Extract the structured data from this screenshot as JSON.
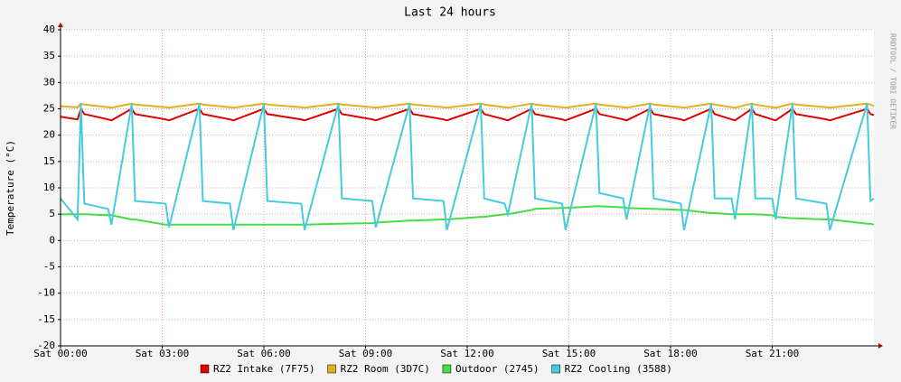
{
  "chart_data": {
    "type": "line",
    "title": "Last 24 hours",
    "y_label": "Temperature (°C)",
    "watermark": "RRDTOOL / TOBI OETIKER",
    "x": [
      0,
      0.5,
      0.6,
      0.7,
      1.4,
      1.5,
      2.1,
      2.2,
      3.1,
      3.2,
      4.1,
      4.2,
      5.0,
      5.1,
      6.0,
      6.1,
      7.1,
      7.2,
      8.2,
      8.3,
      9.2,
      9.3,
      10.3,
      10.4,
      11.3,
      11.4,
      12.4,
      12.5,
      13.1,
      13.2,
      13.9,
      14.0,
      14.8,
      14.9,
      15.8,
      15.9,
      16.6,
      16.7,
      17.4,
      17.5,
      18.3,
      18.4,
      19.2,
      19.3,
      19.8,
      19.9,
      20.4,
      20.5,
      21.0,
      21.1,
      21.6,
      21.7,
      22.6,
      22.7,
      23.8,
      23.9,
      24.0
    ],
    "xlim": [
      0,
      24
    ],
    "xticks": [
      {
        "value": 0,
        "label": "Sat 00:00"
      },
      {
        "value": 3,
        "label": "Sat 03:00"
      },
      {
        "value": 6,
        "label": "Sat 06:00"
      },
      {
        "value": 9,
        "label": "Sat 09:00"
      },
      {
        "value": 12,
        "label": "Sat 12:00"
      },
      {
        "value": 15,
        "label": "Sat 15:00"
      },
      {
        "value": 18,
        "label": "Sat 18:00"
      },
      {
        "value": 21,
        "label": "Sat 21:00"
      }
    ],
    "ylim": [
      -20,
      40
    ],
    "yticks": [
      -20,
      -15,
      -10,
      -5,
      0,
      5,
      10,
      15,
      20,
      25,
      30,
      35,
      40
    ],
    "grid": true,
    "series": [
      {
        "name": "RZ2 Intake (7F75)",
        "color": "#dd0000",
        "values": [
          23.5,
          23,
          25,
          24,
          23,
          22.8,
          25,
          24,
          23,
          22.8,
          25,
          24,
          23,
          22.8,
          25,
          24,
          23,
          22.8,
          25,
          24,
          23,
          22.8,
          25,
          24,
          23,
          22.8,
          25,
          24,
          23,
          22.8,
          25,
          24,
          23,
          22.8,
          25,
          24,
          23,
          22.8,
          25,
          24,
          23,
          22.8,
          25,
          24,
          23,
          22.8,
          25,
          24,
          23,
          22.8,
          25,
          24,
          23,
          22.8,
          25,
          24,
          23.8
        ]
      },
      {
        "name": "RZ2 Room (3D7C)",
        "color": "#e0b020",
        "values": [
          25.5,
          25.3,
          26,
          25.8,
          25.3,
          25.2,
          26,
          25.8,
          25.3,
          25.2,
          26,
          25.8,
          25.3,
          25.2,
          26,
          25.8,
          25.3,
          25.2,
          26,
          25.8,
          25.3,
          25.2,
          26,
          25.8,
          25.3,
          25.2,
          26,
          25.8,
          25.3,
          25.2,
          26,
          25.8,
          25.3,
          25.2,
          26,
          25.8,
          25.3,
          25.2,
          26,
          25.8,
          25.3,
          25.2,
          26,
          25.8,
          25.3,
          25.2,
          26,
          25.8,
          25.3,
          25.2,
          26,
          25.8,
          25.3,
          25.2,
          26,
          25.8,
          25.5
        ]
      },
      {
        "name": "Outdoor (2745)",
        "color": "#44dd44",
        "values": [
          5,
          5,
          5,
          5,
          4.8,
          4.8,
          4,
          4,
          3,
          3,
          3,
          3,
          3,
          3,
          3,
          3,
          3,
          3,
          3.2,
          3.2,
          3.3,
          3.4,
          3.8,
          3.8,
          4,
          4,
          4.5,
          4.5,
          5,
          5,
          5.8,
          6,
          6.2,
          6.2,
          6.5,
          6.5,
          6.3,
          6.2,
          6,
          6,
          5.8,
          5.8,
          5.2,
          5.2,
          5,
          5,
          5,
          5,
          4.8,
          4.5,
          4.2,
          4.2,
          4,
          4,
          3.2,
          3.2,
          3
        ]
      },
      {
        "name": "RZ2 Cooling (3588)",
        "color": "#44ccdd",
        "values": [
          8,
          4,
          26,
          7,
          6,
          3,
          26,
          7.5,
          7,
          2.5,
          26,
          7.5,
          7,
          2,
          26,
          7.5,
          7,
          2,
          26,
          8,
          7.5,
          2.5,
          26,
          8,
          7.5,
          2,
          26,
          8,
          7,
          5,
          26,
          8,
          7,
          2,
          26,
          9,
          8,
          4,
          26,
          8,
          7,
          2,
          26,
          8,
          8,
          4,
          26,
          8,
          8,
          4,
          26,
          8,
          7,
          2,
          26,
          7.5,
          8
        ]
      }
    ]
  }
}
